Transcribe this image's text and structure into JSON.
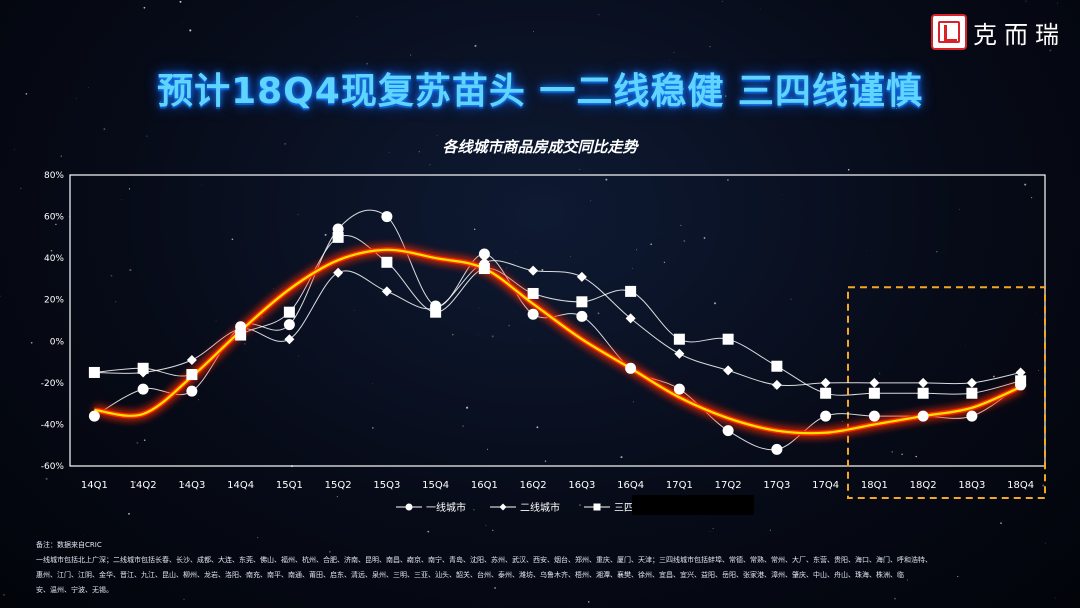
{
  "brand": {
    "name": "克而瑞",
    "accent_color": "#d8232a"
  },
  "title": "预计18Q4现复苏苗头 一二线稳健 三四线谨慎",
  "chart_data": {
    "type": "line",
    "title": "各线城市商品房成交同比走势",
    "categories": [
      "14Q1",
      "14Q2",
      "14Q3",
      "14Q4",
      "15Q1",
      "15Q2",
      "15Q3",
      "15Q4",
      "16Q1",
      "16Q2",
      "16Q3",
      "16Q4",
      "17Q1",
      "17Q2",
      "17Q3",
      "17Q4",
      "18Q1",
      "18Q2",
      "18Q3",
      "18Q4"
    ],
    "y_ticks": [
      "80%",
      "60%",
      "40%",
      "20%",
      "0%",
      "-20%",
      "-40%",
      "-60%"
    ],
    "ylim": [
      -60,
      80
    ],
    "grid": false,
    "legend_position": "bottom",
    "forecast_from": "18Q1",
    "series": [
      {
        "name": "一线城市",
        "marker": "circle",
        "values": [
          -36,
          -23,
          -24,
          7,
          8,
          54,
          60,
          17,
          42,
          13,
          12,
          -13,
          -23,
          -43,
          -52,
          -36,
          -36,
          -36,
          -36,
          -21
        ]
      },
      {
        "name": "二线城市",
        "marker": "diamond",
        "values": [
          -15,
          -15,
          -9,
          6,
          1,
          33,
          24,
          16,
          38,
          34,
          31,
          11,
          -6,
          -14,
          -21,
          -20,
          -20,
          -20,
          -20,
          -15
        ]
      },
      {
        "name": "三四线城市",
        "marker": "square",
        "values": [
          -15,
          -13,
          -16,
          3,
          14,
          50,
          38,
          14,
          35,
          23,
          19,
          24,
          1,
          1,
          -12,
          -25,
          -25,
          -25,
          -25,
          -19
        ]
      }
    ],
    "trend_values": [
      -33,
      -35,
      -17,
      5,
      25,
      39,
      44,
      40,
      35,
      18,
      1,
      -13,
      -27,
      -37,
      -43,
      -44,
      -40,
      -36,
      -32,
      -22
    ],
    "colors": {
      "series": "#ffffff",
      "trend_glow": "#ff2a00",
      "trend_core": "#ffe400",
      "forecast_box": "#f5a623"
    }
  },
  "notes": [
    "备注：数据来自CRIC",
    "一线城市包括北上广深；二线城市包括长春、长沙、成都、大连、东莞、佛山、福州、杭州、合肥、济南、昆明、南昌、南京、南宁、青岛、沈阳、苏州、武汉、西安、烟台、郑州、重庆、厦门、天津；三四线城市包括蚌埠、常德、常熟、常州、大厂、东营、贵阳、海口、海门、呼和浩特、",
    "惠州、江门、江阴、金华、晋江、九江、昆山、柳州、龙岩、洛阳、南充、南平、南通、莆田、启东、清远、泉州、三明、三亚、汕头、韶关、台州、泰州、潍坊、乌鲁木齐、梧州、湘潭、襄樊、徐州、宜昌、宜兴、益阳、岳阳、张家港、漳州、肇庆、中山、舟山、珠海、株洲、临",
    "安、温州、宁波、无锡。"
  ]
}
